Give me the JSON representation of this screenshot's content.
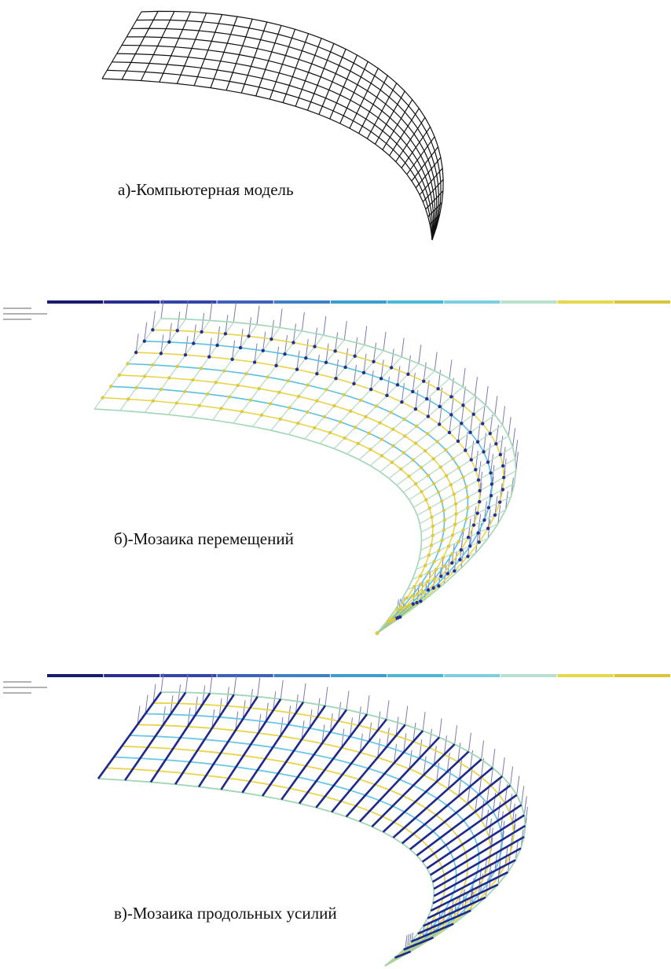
{
  "panels": [
    {
      "caption": "а)-Компьютерная модель"
    },
    {
      "caption": "б)-Мозаика перемещений"
    },
    {
      "caption": "в)-Мозаика продольных усилий"
    }
  ]
}
